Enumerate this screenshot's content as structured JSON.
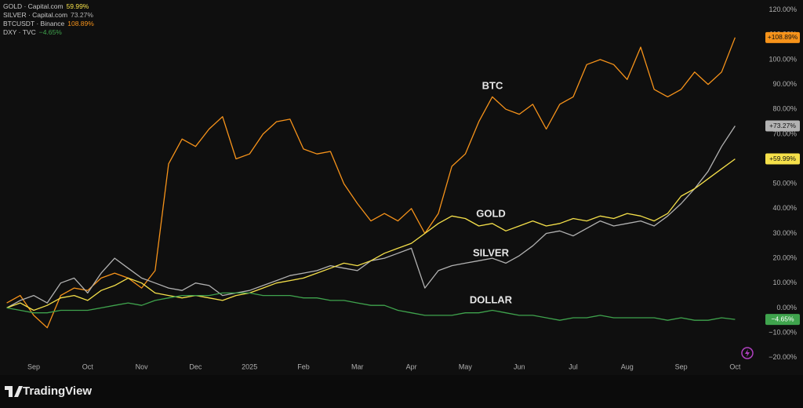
{
  "chart_data": {
    "type": "line",
    "categories": [
      null,
      null,
      "Sep",
      null,
      null,
      null,
      "Oct",
      null,
      null,
      null,
      "Nov",
      null,
      null,
      null,
      "Dec",
      null,
      null,
      null,
      "2025",
      null,
      null,
      null,
      "Feb",
      null,
      null,
      null,
      "Mar",
      null,
      null,
      null,
      "Apr",
      null,
      null,
      null,
      "May",
      null,
      null,
      null,
      "Jun",
      null,
      null,
      null,
      "Jul",
      null,
      null,
      null,
      "Aug",
      null,
      null,
      null,
      "Sep",
      null,
      null,
      null,
      "Oct"
    ],
    "series": [
      {
        "name": "BTCUSDT · Binance",
        "color": "#f7931a",
        "last_label": "108.89%",
        "badge": "+108.89%",
        "values": [
          2,
          5,
          -3,
          -8,
          5,
          8,
          7,
          12,
          14,
          12,
          8,
          15,
          58,
          68,
          65,
          72,
          77,
          60,
          62,
          70,
          75,
          76,
          64,
          62,
          63,
          50,
          42,
          35,
          38,
          35,
          40,
          30,
          38,
          57,
          62,
          75,
          85,
          80,
          78,
          82,
          72,
          82,
          85,
          98,
          100,
          98,
          92,
          105,
          88,
          85,
          88,
          95,
          90,
          95,
          108.89
        ]
      },
      {
        "name": "SILVER · Capital.com",
        "color": "#b2b2b2",
        "last_label": "73.27%",
        "badge": "+73.27%",
        "values": [
          0,
          3,
          5,
          2,
          10,
          12,
          6,
          14,
          20,
          16,
          12,
          10,
          8,
          7,
          10,
          9,
          5,
          6,
          7,
          9,
          11,
          13,
          14,
          15,
          17,
          16,
          15,
          19,
          20,
          22,
          24,
          8,
          15,
          17,
          18,
          19,
          20,
          18,
          21,
          25,
          30,
          31,
          29,
          32,
          35,
          33,
          34,
          35,
          33,
          37,
          42,
          48,
          55,
          65,
          73.27
        ]
      },
      {
        "name": "GOLD · Capital.com",
        "color": "#f5e04a",
        "last_label": "59.99%",
        "badge": "+59.99%",
        "values": [
          0,
          2,
          -1,
          1,
          4,
          5,
          3,
          7,
          9,
          12,
          10,
          6,
          5,
          4,
          5,
          4,
          3,
          5,
          6,
          8,
          10,
          11,
          12,
          14,
          16,
          18,
          17,
          19,
          22,
          24,
          26,
          30,
          34,
          37,
          36,
          33,
          34,
          31,
          33,
          35,
          33,
          34,
          36,
          35,
          37,
          36,
          38,
          37,
          35,
          38,
          45,
          48,
          52,
          56,
          59.99
        ]
      },
      {
        "name": "DXY · TVC",
        "color": "#3fa34d",
        "last_label": "−4.65%",
        "badge": "−4.65%",
        "values": [
          0,
          -1,
          -2,
          -2,
          -1,
          -1,
          -1,
          0,
          1,
          2,
          1,
          3,
          4,
          5,
          5,
          5,
          6,
          6,
          6,
          5,
          5,
          5,
          4,
          4,
          3,
          3,
          2,
          1,
          1,
          -1,
          -2,
          -3,
          -3,
          -3,
          -2,
          -2,
          -1,
          -2,
          -3,
          -3,
          -4,
          -5,
          -4,
          -4,
          -3,
          -4,
          -4,
          -4,
          -4,
          -5,
          -4,
          -5,
          -5,
          -4,
          -4.65
        ]
      }
    ],
    "legend_order": [
      2,
      1,
      0,
      3
    ],
    "annotations": [
      "BTC",
      "GOLD",
      "SILVER",
      "DOLLAR"
    ],
    "ylim": [
      -22,
      124
    ],
    "yticks": [
      {
        "value": 120,
        "label": "120.00%"
      },
      {
        "value": 110,
        "label": "110.00%"
      },
      {
        "value": 100,
        "label": "100.00%"
      },
      {
        "value": 90,
        "label": "90.00%"
      },
      {
        "value": 80,
        "label": "80.00%"
      },
      {
        "value": 70,
        "label": "70.00%"
      },
      {
        "value": 60,
        "label": "60.00%"
      },
      {
        "value": 50,
        "label": "50.00%"
      },
      {
        "value": 40,
        "label": "40.00%"
      },
      {
        "value": 30,
        "label": "30.00%"
      },
      {
        "value": 20,
        "label": "20.00%"
      },
      {
        "value": 10,
        "label": "10.00%"
      },
      {
        "value": 0,
        "label": "0.00%"
      },
      {
        "value": -10,
        "label": "−10.00%"
      },
      {
        "value": -20,
        "label": "−20.00%"
      }
    ],
    "grid": false
  },
  "brand": "TradingView"
}
